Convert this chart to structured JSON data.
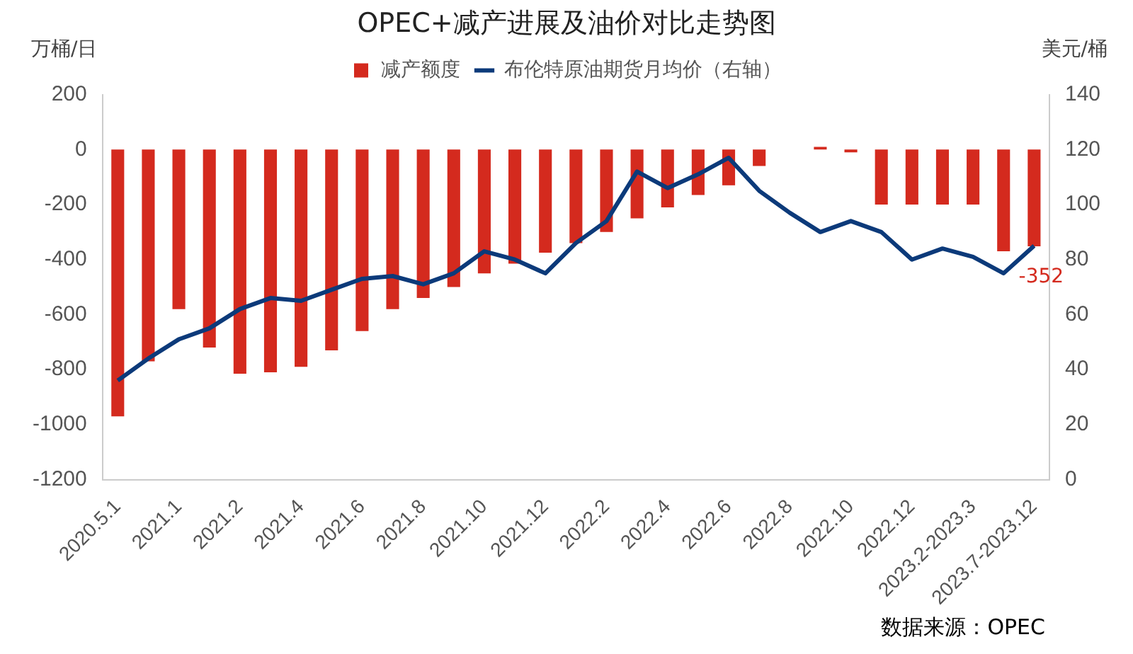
{
  "chart_data": {
    "type": "bar",
    "title": "OPEC+减产进展及油价对比走势图",
    "ylabel": "万桶/日",
    "y2label": "美元/桶",
    "categories": [
      "2020.5.1",
      null,
      "2021.1",
      null,
      "2021.2",
      null,
      "2021.4",
      null,
      "2021.6",
      null,
      "2021.8",
      null,
      "2021.10",
      null,
      "2021.12",
      null,
      "2022.2",
      null,
      "2022.4",
      null,
      "2022.6",
      null,
      "2022.8",
      null,
      "2022.10",
      null,
      "2022.12",
      null,
      "2023.2-2023.3",
      null,
      "2023.7-2023.12"
    ],
    "series": [
      {
        "name": "减产额度",
        "color": "#d42a1e",
        "values": [
          -970,
          -770,
          -580,
          -720,
          -815,
          -810,
          -790,
          -730,
          -660,
          -580,
          -540,
          -500,
          -450,
          -415,
          -375,
          -340,
          -300,
          -250,
          -210,
          -165,
          -130,
          -60,
          null,
          10,
          -10,
          -200,
          -200,
          -200,
          -200,
          -370,
          -352
        ],
        "value_labels": [
          null,
          null,
          null,
          null,
          null,
          null,
          null,
          null,
          null,
          null,
          null,
          null,
          null,
          null,
          null,
          null,
          null,
          null,
          null,
          null,
          null,
          null,
          null,
          null,
          null,
          null,
          null,
          null,
          null,
          null,
          "-352"
        ]
      },
      {
        "name": "布伦特原油期货月均价（右轴）",
        "type": "line",
        "axis": "y2",
        "color": "#0c3a7a",
        "values": [
          36,
          44,
          51,
          55,
          62,
          66,
          65,
          69,
          73,
          74,
          71,
          75,
          83,
          80,
          75,
          86,
          94,
          112,
          106,
          111,
          117,
          105,
          97,
          90,
          94,
          90,
          80,
          84,
          81,
          75,
          85
        ]
      }
    ],
    "ylim": [
      -1200,
      200
    ],
    "yticks": [
      -1200,
      -1000,
      -800,
      -600,
      -400,
      -200,
      0,
      200
    ],
    "y2lim": [
      0,
      140
    ],
    "y2ticks": [
      0,
      20,
      40,
      60,
      80,
      100,
      120,
      140
    ],
    "legend": "top",
    "grid": false,
    "marker": "none",
    "annotations": [
      "数据来源：OPEC"
    ]
  }
}
